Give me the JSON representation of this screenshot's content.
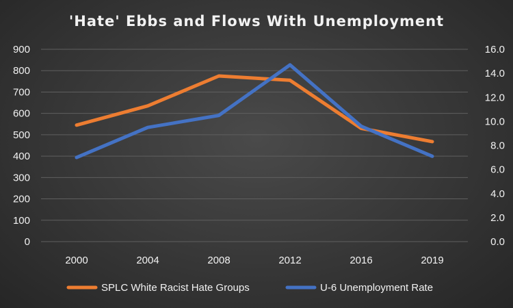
{
  "chart_data": {
    "type": "line",
    "title": "'Hate' Ebbs and Flows With Unemployment",
    "categories": [
      "2000",
      "2004",
      "2008",
      "2012",
      "2016",
      "2019"
    ],
    "series": [
      {
        "name": "SPLC White Racist Hate Groups",
        "axis": "left",
        "color": "#ed7d31",
        "values": [
          545,
          635,
          775,
          755,
          530,
          468
        ]
      },
      {
        "name": "U-6 Unemployment Rate",
        "axis": "right",
        "color": "#4472c4",
        "values": [
          7.0,
          9.5,
          10.5,
          14.7,
          9.6,
          7.1
        ]
      }
    ],
    "y_left": {
      "range": [
        0,
        900
      ],
      "ticks": [
        "0",
        "100",
        "200",
        "300",
        "400",
        "500",
        "600",
        "700",
        "800",
        "900"
      ]
    },
    "y_right": {
      "range": [
        0,
        16
      ],
      "ticks": [
        "0.0",
        "2.0",
        "4.0",
        "6.0",
        "8.0",
        "10.0",
        "12.0",
        "14.0",
        "16.0"
      ]
    },
    "grid": true,
    "legend": "bottom"
  }
}
